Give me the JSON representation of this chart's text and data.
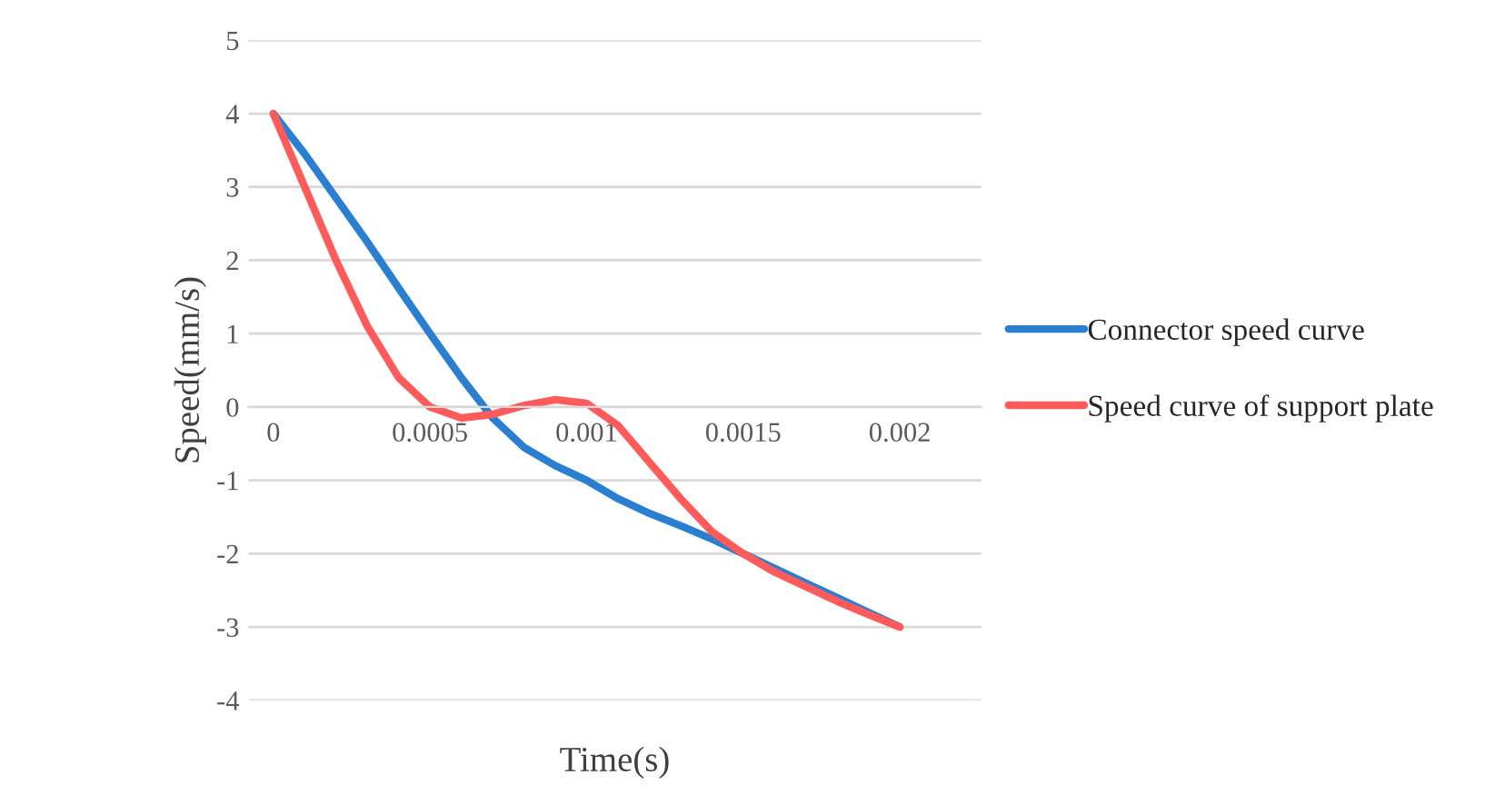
{
  "chart_data": {
    "type": "line",
    "xlabel": "Time(s)",
    "ylabel": "Speed(mm/s)",
    "x": [
      0,
      0.0001,
      0.0002,
      0.0003,
      0.0004,
      0.0005,
      0.0006,
      0.0007,
      0.0008,
      0.0009,
      0.001,
      0.0011,
      0.0012,
      0.0013,
      0.0014,
      0.0015,
      0.0016,
      0.0017,
      0.0018,
      0.0019,
      0.002
    ],
    "series": [
      {
        "name": "Connector speed curve",
        "color": "#2a7fd0",
        "values": [
          4,
          3.45,
          2.85,
          2.25,
          1.62,
          1.0,
          0.4,
          -0.15,
          -0.55,
          -0.8,
          -1.0,
          -1.25,
          -1.45,
          -1.62,
          -1.8,
          -2.0,
          -2.2,
          -2.4,
          -2.6,
          -2.8,
          -3
        ]
      },
      {
        "name": "Speed curve of support plate",
        "color": "#ff5b5b",
        "values": [
          4,
          3.0,
          2.0,
          1.1,
          0.4,
          0.0,
          -0.15,
          -0.1,
          0.02,
          0.1,
          0.05,
          -0.25,
          -0.75,
          -1.25,
          -1.7,
          -2.0,
          -2.25,
          -2.45,
          -2.65,
          -2.83,
          -3
        ]
      }
    ],
    "xlim": [
      -8e-05,
      0.00226
    ],
    "xticks": [
      0,
      0.0005,
      0.001,
      0.0015,
      0.002
    ],
    "ylim": [
      -4,
      5
    ],
    "yticks": [
      -4,
      -3,
      -2,
      -1,
      0,
      1,
      2,
      3,
      4,
      5
    ],
    "grid": "y",
    "legend": "right",
    "marker": "none",
    "line_style": "solid"
  }
}
